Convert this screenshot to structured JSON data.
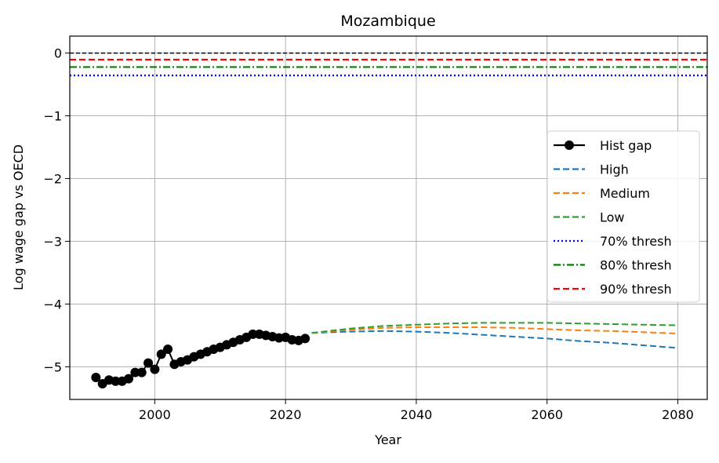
{
  "chart_data": {
    "type": "line",
    "title": "Mozambique",
    "xlabel": "Year",
    "ylabel": "Log wage gap vs OECD",
    "xlim": [
      1987,
      2084.5
    ],
    "ylim": [
      -5.52,
      0.27
    ],
    "xticks": [
      2000,
      2020,
      2040,
      2060,
      2080
    ],
    "yticks": [
      0,
      -1,
      -2,
      -3,
      -4,
      -5
    ],
    "xtick_labels": [
      "2000",
      "2020",
      "2040",
      "2060",
      "2080"
    ],
    "ytick_labels": [
      "0",
      "−1",
      "−2",
      "−3",
      "−4",
      "−5"
    ],
    "grid": true,
    "legend_position": "center-right",
    "reference_lines": [
      {
        "name": "zero",
        "y": 0,
        "color": "#000000",
        "style": "dashed"
      }
    ],
    "series": [
      {
        "name": "Hist gap",
        "color": "#000000",
        "style": "solid-marker",
        "x": [
          1991,
          1992,
          1993,
          1994,
          1995,
          1996,
          1997,
          1998,
          1999,
          2000,
          2001,
          2002,
          2003,
          2004,
          2005,
          2006,
          2007,
          2008,
          2009,
          2010,
          2011,
          2012,
          2013,
          2014,
          2015,
          2016,
          2017,
          2018,
          2019,
          2020,
          2021,
          2022,
          2023
        ],
        "y": [
          -5.17,
          -5.27,
          -5.21,
          -5.23,
          -5.23,
          -5.19,
          -5.09,
          -5.09,
          -4.94,
          -5.04,
          -4.8,
          -4.72,
          -4.96,
          -4.92,
          -4.89,
          -4.84,
          -4.8,
          -4.76,
          -4.72,
          -4.69,
          -4.65,
          -4.61,
          -4.57,
          -4.53,
          -4.48,
          -4.48,
          -4.5,
          -4.52,
          -4.54,
          -4.53,
          -4.57,
          -4.58,
          -4.55
        ]
      },
      {
        "name": "High",
        "color": "#1f77b4",
        "style": "dashed",
        "x": [
          2024,
          2030,
          2035,
          2040,
          2045,
          2050,
          2055,
          2060,
          2065,
          2070,
          2075,
          2080
        ],
        "y": [
          -4.46,
          -4.44,
          -4.43,
          -4.44,
          -4.46,
          -4.49,
          -4.52,
          -4.55,
          -4.59,
          -4.62,
          -4.66,
          -4.7
        ]
      },
      {
        "name": "Medium",
        "color": "#ff7f0e",
        "style": "dashed",
        "x": [
          2024,
          2030,
          2035,
          2040,
          2045,
          2050,
          2055,
          2060,
          2065,
          2070,
          2075,
          2080
        ],
        "y": [
          -4.46,
          -4.41,
          -4.38,
          -4.37,
          -4.37,
          -4.37,
          -4.38,
          -4.4,
          -4.42,
          -4.43,
          -4.45,
          -4.47
        ]
      },
      {
        "name": "Low",
        "color": "#2ca02c",
        "style": "dashed",
        "x": [
          2024,
          2030,
          2035,
          2040,
          2045,
          2050,
          2055,
          2060,
          2065,
          2070,
          2075,
          2080
        ],
        "y": [
          -4.46,
          -4.39,
          -4.35,
          -4.33,
          -4.31,
          -4.3,
          -4.3,
          -4.3,
          -4.31,
          -4.32,
          -4.33,
          -4.34
        ]
      },
      {
        "name": "70% thresh",
        "color": "#0000ff",
        "style": "dotted",
        "y_const": -0.357
      },
      {
        "name": "80% thresh",
        "color": "#008000",
        "style": "dashdot",
        "y_const": -0.223
      },
      {
        "name": "90% thresh",
        "color": "#ff0000",
        "style": "dashed",
        "y_const": -0.105
      }
    ]
  }
}
